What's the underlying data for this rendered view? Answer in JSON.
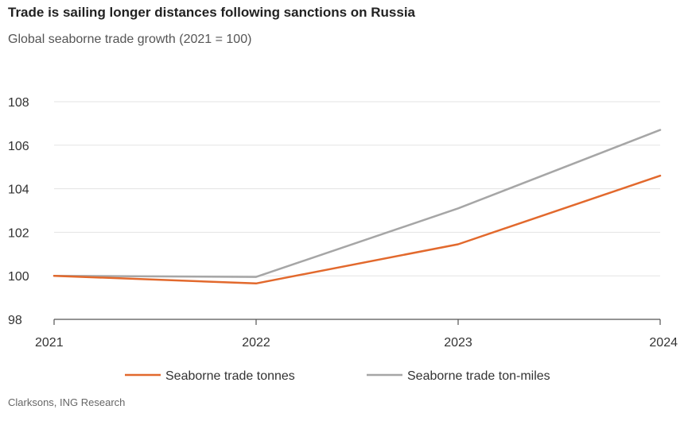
{
  "chart_data": {
    "type": "line",
    "title": "Trade is sailing longer distances following sanctions on Russia",
    "subtitle": "Global seaborne trade growth (2021 = 100)",
    "categories": [
      "2021",
      "2022",
      "2023",
      "2024"
    ],
    "y_ticks": [
      "98",
      "100",
      "102",
      "104",
      "106",
      "108"
    ],
    "ylim": [
      98,
      108
    ],
    "series": [
      {
        "name": "Seaborne trade tonnes",
        "color": "#e2692d",
        "values": [
          100.0,
          99.65,
          101.45,
          104.6
        ]
      },
      {
        "name": "Seaborne trade ton-miles",
        "color": "#a6a6a6",
        "values": [
          100.0,
          99.95,
          103.1,
          106.7
        ]
      }
    ],
    "grid": true,
    "legend_position": "bottom",
    "source": "Clarksons, ING Research"
  }
}
